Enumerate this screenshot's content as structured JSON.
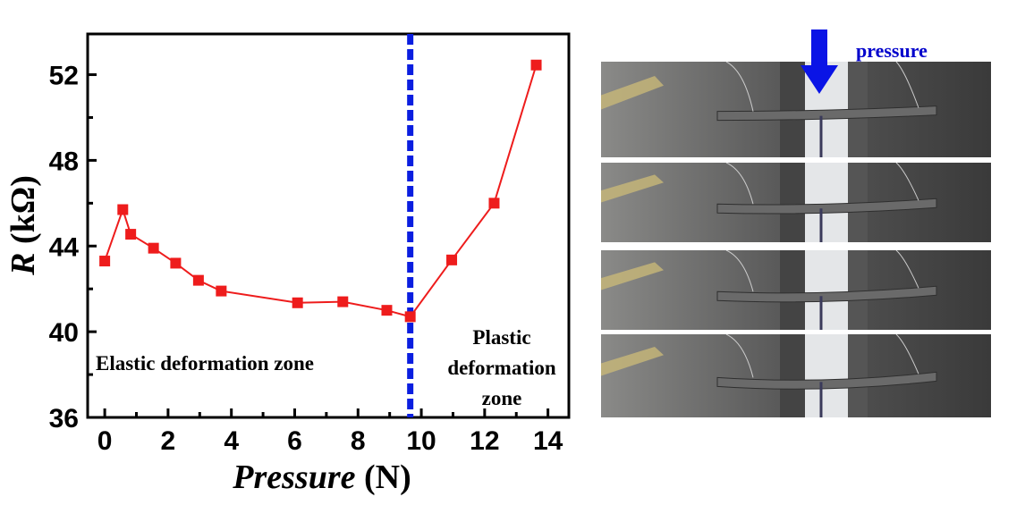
{
  "chart_data": {
    "type": "line",
    "title": "",
    "xlabel_italic": "Pressure",
    "xlabel_unit": " (N)",
    "ylabel_italic": "R",
    "ylabel_unit": " (kΩ)",
    "xlim": [
      -0.54,
      14.66
    ],
    "ylim": [
      36,
      53.9
    ],
    "xticks": [
      0,
      2,
      4,
      6,
      8,
      10,
      12,
      14
    ],
    "yticks": [
      36,
      40,
      44,
      48,
      52
    ],
    "series": [
      {
        "name": "R",
        "color": "#ee1c1c",
        "x": [
          0,
          0.57,
          0.82,
          1.54,
          2.24,
          2.96,
          3.68,
          6.09,
          7.52,
          8.91,
          9.65,
          10.96,
          12.3,
          13.63
        ],
        "y": [
          43.3,
          45.7,
          44.55,
          43.9,
          43.2,
          42.4,
          41.9,
          41.35,
          41.4,
          41.0,
          40.7,
          43.35,
          46.0,
          52.45
        ]
      }
    ],
    "divider": {
      "x": 9.65,
      "color": "#0a1ee0",
      "style": "dashed"
    },
    "annotations": {
      "elastic": "Elastic deformation zone",
      "plastic_lines": [
        "Plastic",
        "deformation",
        "zone"
      ]
    }
  },
  "photos": {
    "pressure_label": "pressure",
    "arrow_color": "#0a14e6",
    "count": 4
  }
}
